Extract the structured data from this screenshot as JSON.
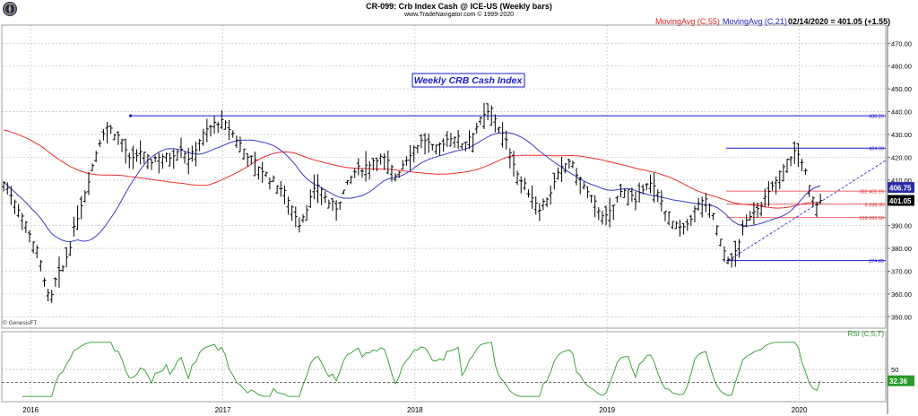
{
  "header": {
    "title": "CR-099:  Crb Index Cash @ ICE-US  (Weekly bars)",
    "subtitle": "www.TradeNavigator.com © 1999-2020",
    "ma55_label": "MovingAvg (C,55)",
    "ma21_label": "MovingAvg (C,21)",
    "last_label": "02/14/2020 = 401.05 (+1.55)"
  },
  "annotation": "Weekly CRB Cash Index",
  "source_label": "© GenesisFT",
  "colors": {
    "bars": "#000000",
    "ma55": "#e83030",
    "ma21": "#3a3ac8",
    "rsi": "#2a9a2a",
    "hline": "#1a1acc",
    "fib": "#e03030",
    "grid": "#c8c8c8",
    "box_ma21": "#2a2aa8",
    "box_rsi": "#2a9a2a"
  },
  "chart_data": {
    "type": "ohlc",
    "frequency": "weekly",
    "ylim": [
      345,
      478
    ],
    "y_ticks": [
      350,
      360,
      370,
      380,
      390,
      400,
      410,
      420,
      430,
      440,
      450,
      460,
      470
    ],
    "y_tick_labels": [
      "350.00",
      "360.00",
      "370.00",
      "380.00",
      "390.00",
      "400.00",
      "410.00",
      "420.00",
      "430.00",
      "440.00",
      "450.00",
      "460.00",
      "470.00"
    ],
    "x_range": [
      2015.85,
      2020.45
    ],
    "x_ticks": [
      2016,
      2017,
      2018,
      2019,
      2020
    ],
    "x_tick_labels": [
      "2016",
      "2017",
      "2018",
      "2019",
      "2020"
    ],
    "close_anchors": [
      [
        2015.86,
        409
      ],
      [
        2015.92,
        401
      ],
      [
        2015.98,
        390
      ],
      [
        2016.03,
        380
      ],
      [
        2016.07,
        368
      ],
      [
        2016.1,
        355
      ],
      [
        2016.13,
        366
      ],
      [
        2016.17,
        372
      ],
      [
        2016.2,
        380
      ],
      [
        2016.25,
        396
      ],
      [
        2016.3,
        410
      ],
      [
        2016.35,
        425
      ],
      [
        2016.39,
        434
      ],
      [
        2016.44,
        431
      ],
      [
        2016.48,
        427
      ],
      [
        2016.52,
        417
      ],
      [
        2016.57,
        423
      ],
      [
        2016.62,
        418
      ],
      [
        2016.67,
        421
      ],
      [
        2016.72,
        420
      ],
      [
        2016.78,
        425
      ],
      [
        2016.83,
        419
      ],
      [
        2016.88,
        428
      ],
      [
        2016.93,
        433
      ],
      [
        2016.98,
        436
      ],
      [
        2017.03,
        433
      ],
      [
        2017.09,
        426
      ],
      [
        2017.14,
        420
      ],
      [
        2017.19,
        416
      ],
      [
        2017.24,
        411
      ],
      [
        2017.29,
        408
      ],
      [
        2017.34,
        402
      ],
      [
        2017.4,
        391
      ],
      [
        2017.44,
        399
      ],
      [
        2017.5,
        409
      ],
      [
        2017.54,
        401
      ],
      [
        2017.59,
        398
      ],
      [
        2017.64,
        407
      ],
      [
        2017.69,
        414
      ],
      [
        2017.74,
        416
      ],
      [
        2017.8,
        420
      ],
      [
        2017.85,
        419
      ],
      [
        2017.9,
        412
      ],
      [
        2017.95,
        419
      ],
      [
        2018.0,
        425
      ],
      [
        2018.05,
        428
      ],
      [
        2018.1,
        423
      ],
      [
        2018.15,
        427
      ],
      [
        2018.2,
        430
      ],
      [
        2018.25,
        426
      ],
      [
        2018.3,
        431
      ],
      [
        2018.35,
        437
      ],
      [
        2018.4,
        441
      ],
      [
        2018.44,
        433
      ],
      [
        2018.5,
        422
      ],
      [
        2018.54,
        411
      ],
      [
        2018.6,
        404
      ],
      [
        2018.65,
        398
      ],
      [
        2018.7,
        404
      ],
      [
        2018.75,
        413
      ],
      [
        2018.8,
        419
      ],
      [
        2018.85,
        412
      ],
      [
        2018.9,
        404
      ],
      [
        2018.95,
        398
      ],
      [
        2019.0,
        393
      ],
      [
        2019.05,
        402
      ],
      [
        2019.1,
        408
      ],
      [
        2019.15,
        399
      ],
      [
        2019.2,
        410
      ],
      [
        2019.25,
        406
      ],
      [
        2019.3,
        398
      ],
      [
        2019.35,
        390
      ],
      [
        2019.4,
        388
      ],
      [
        2019.45,
        396
      ],
      [
        2019.5,
        402
      ],
      [
        2019.55,
        396
      ],
      [
        2019.6,
        380
      ],
      [
        2019.65,
        374
      ],
      [
        2019.7,
        387
      ],
      [
        2019.75,
        396
      ],
      [
        2019.8,
        400
      ],
      [
        2019.85,
        405
      ],
      [
        2019.9,
        413
      ],
      [
        2019.95,
        420
      ],
      [
        2019.98,
        423
      ],
      [
        2020.02,
        418
      ],
      [
        2020.05,
        407
      ],
      [
        2020.08,
        399
      ],
      [
        2020.11,
        401
      ]
    ],
    "last": {
      "value": 401.05,
      "label": "401.05"
    },
    "ma21_last": {
      "value": 406.75,
      "label": "406.75"
    },
    "levels": [
      {
        "value": 438.2,
        "label": "438.20",
        "from": 2016.52,
        "to": 2020.45,
        "style": "hline"
      },
      {
        "value": 424.0,
        "label": "424.00",
        "from": 2019.62,
        "to": 2020.45,
        "style": "hline"
      },
      {
        "value": 405.15,
        "label": "382 405.15",
        "from": 2019.62,
        "to": 2020.45,
        "style": "fib"
      },
      {
        "value": 399.35,
        "label": "5 399.35",
        "from": 2019.62,
        "to": 2020.45,
        "style": "fib"
      },
      {
        "value": 393.5,
        "label": "618 393.50",
        "from": 2019.62,
        "to": 2020.45,
        "style": "fib"
      },
      {
        "value": 374.65,
        "label": "374.65",
        "from": 2019.62,
        "to": 2020.45,
        "style": "hline"
      }
    ],
    "trendline": {
      "from": [
        2019.63,
        374.65
      ],
      "to": [
        2020.55,
        424
      ]
    },
    "rsi": {
      "label": "RSI (C,5,T)",
      "ylim": [
        0,
        100
      ],
      "y_ticks": [
        50
      ],
      "y_tick_labels": [
        "50"
      ],
      "ref_line": 30,
      "last": {
        "value": 32.36,
        "label": "32.36"
      }
    }
  }
}
